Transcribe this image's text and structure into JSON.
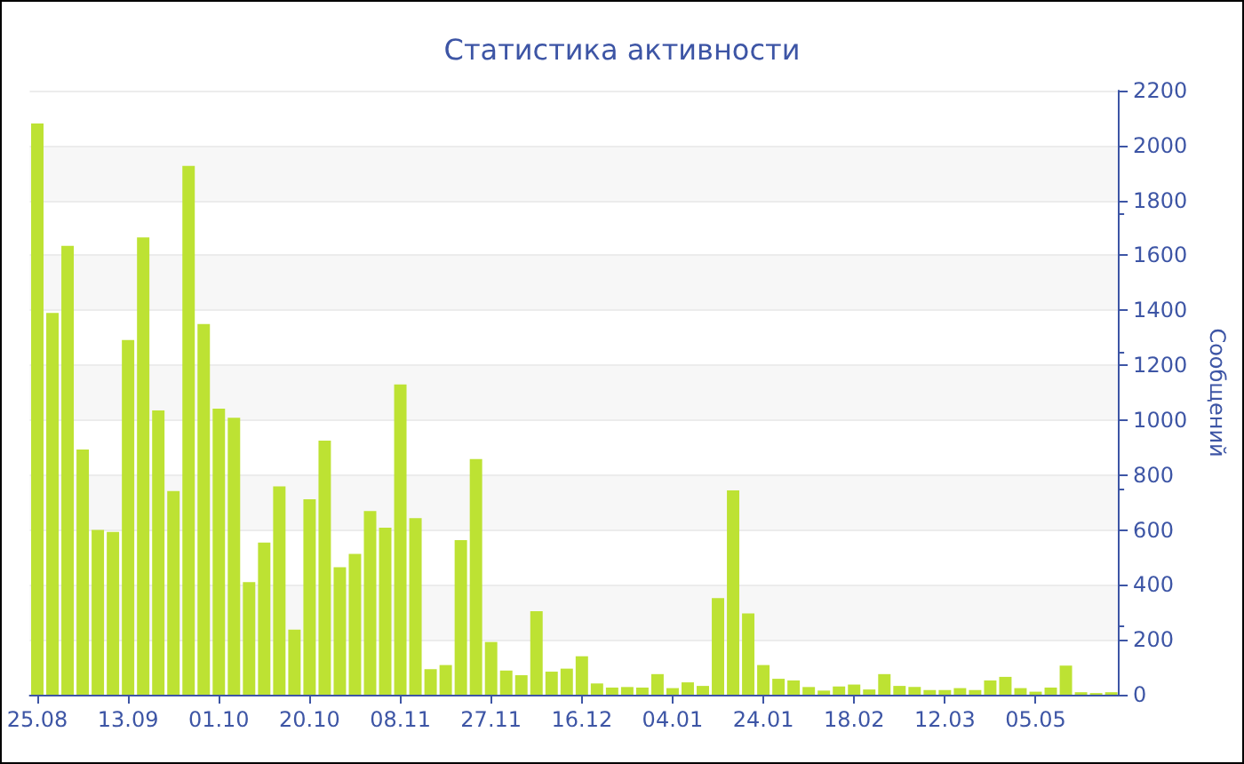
{
  "chart_data": {
    "type": "bar",
    "title": "Статистика активности",
    "ylabel": "Сообщений",
    "categories": [
      "25.08",
      null,
      null,
      null,
      null,
      null,
      "13.09",
      null,
      null,
      null,
      null,
      null,
      "01.10",
      null,
      null,
      null,
      null,
      null,
      "20.10",
      null,
      null,
      null,
      null,
      null,
      "08.11",
      null,
      null,
      null,
      null,
      null,
      "27.11",
      null,
      null,
      null,
      null,
      null,
      "16.12",
      null,
      null,
      null,
      null,
      null,
      "04.01",
      null,
      null,
      null,
      null,
      null,
      "24.01",
      null,
      null,
      null,
      null,
      null,
      "18.02",
      null,
      null,
      null,
      null,
      null,
      "12.03",
      null,
      null,
      null,
      null,
      null,
      "05.05",
      null,
      null,
      null,
      null,
      null
    ],
    "values": [
      2080,
      1390,
      1635,
      893,
      600,
      593,
      1292,
      1665,
      1035,
      742,
      1926,
      1350,
      1042,
      1009,
      410,
      554,
      759,
      237,
      712,
      925,
      464,
      513,
      669,
      608,
      1130,
      643,
      93,
      108,
      563,
      858,
      192,
      88,
      71,
      304,
      84,
      95,
      140,
      41,
      26,
      28,
      26,
      75,
      24,
      45,
      32,
      352,
      744,
      296,
      108,
      58,
      52,
      28,
      15,
      30,
      37,
      19,
      75,
      32,
      28,
      17,
      17,
      24,
      17,
      52,
      65,
      24,
      11,
      26,
      106,
      9,
      6,
      9
    ],
    "color": "#bde233",
    "ylim": [
      0,
      2200
    ],
    "yticks": [
      0,
      200,
      400,
      600,
      800,
      1000,
      1200,
      1400,
      1600,
      1800,
      2000,
      2200
    ],
    "grid": "y"
  }
}
